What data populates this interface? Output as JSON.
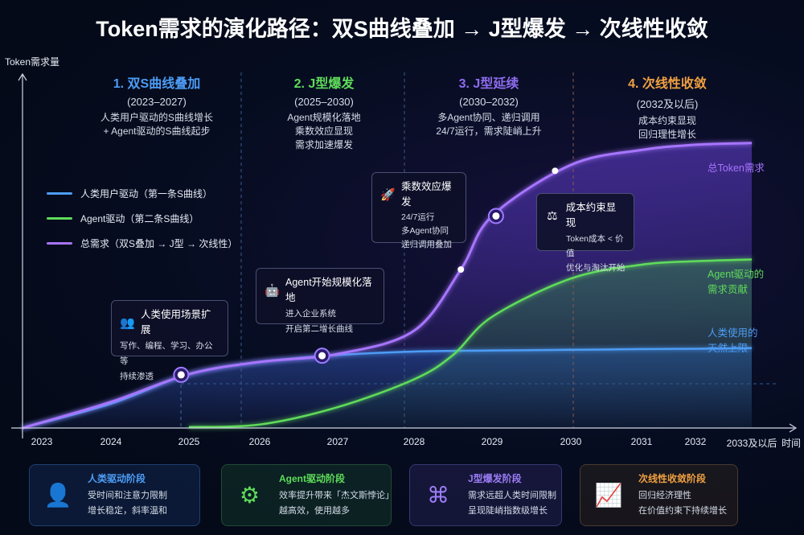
{
  "title": "Token需求的演化路径：双S曲线叠加 → J型爆发 → 次线性收敛",
  "colors": {
    "human": "#4d9cf5",
    "agent": "#5fdc5a",
    "total": "#a774ff",
    "phase4": "#f0a040",
    "background": "#040a18"
  },
  "phases": [
    {
      "title": "1. 双S曲线叠加",
      "years": "(2023–2027)",
      "lines": [
        "人类用户驱动的S曲线增长",
        "+ Agent驱动的S曲线起步"
      ],
      "color": "#4d9cf5"
    },
    {
      "title": "2. J型爆发",
      "years": "(2025–2030)",
      "lines": [
        "Agent规模化落地",
        "乘数效应显现",
        "需求加速爆发"
      ],
      "color": "#5fdc5a"
    },
    {
      "title": "3. J型延续",
      "years": "(2030–2032)",
      "lines": [
        "多Agent协同、递归调用",
        "24/7运行，需求陡峭上升"
      ],
      "color": "#8f6cf0"
    },
    {
      "title": "4. 次线性收敛",
      "years": "(2032及以后)",
      "lines": [
        "成本约束显现",
        "回归理性增长"
      ],
      "color": "#f0a040"
    }
  ],
  "callouts": [
    {
      "icon": "users-icon",
      "title": "人类使用场景扩展",
      "lines": [
        "写作、编程、学习、办公等",
        "持续渗透"
      ]
    },
    {
      "icon": "robot-icon",
      "title": "Agent开始规模化落地",
      "lines": [
        "进入企业系统",
        "开启第二增长曲线"
      ]
    },
    {
      "icon": "rocket-icon",
      "title": "乘数效应爆发",
      "lines": [
        "24/7运行",
        "多Agent协同",
        "递归调用叠加"
      ]
    },
    {
      "icon": "scale-icon",
      "title": "成本约束显现",
      "lines": [
        "Token成本 < 价值",
        "优化与淘汰开始"
      ]
    }
  ],
  "right_labels": {
    "total": "总Token需求",
    "agent": [
      "Agent驱动的",
      "需求贡献"
    ],
    "human": [
      "人类使用的",
      "天然上限"
    ]
  },
  "cards": [
    {
      "icon": "person-icon",
      "title": "人类驱动阶段",
      "lines": [
        "受时间和注意力限制",
        "增长稳定，斜率温和"
      ],
      "color": "#4d9cf5"
    },
    {
      "icon": "gears-icon",
      "title": "Agent驱动阶段",
      "lines": [
        "效率提升带来「杰文斯悖论」",
        "越高效，使用越多"
      ],
      "color": "#5fdc5a"
    },
    {
      "icon": "network-icon",
      "title": "J型爆发阶段",
      "lines": [
        "需求远超人类时间限制",
        "呈现陡峭指数级增长"
      ],
      "color": "#9b7cf5"
    },
    {
      "icon": "growth-chart-icon",
      "title": "次线性收敛阶段",
      "lines": [
        "回归经济理性",
        "在价值约束下持续增长"
      ],
      "color": "#f0a040"
    }
  ],
  "chart_data": {
    "type": "line",
    "title": "Token需求的演化路径：双S曲线叠加 → J型爆发 → 次线性收敛",
    "xlabel": "时间",
    "ylabel": "Token需求量",
    "x_tick_labels": [
      "2023",
      "2024",
      "2025",
      "2026",
      "2027",
      "2028",
      "2029",
      "2030",
      "2031",
      "2032",
      "2033及以后"
    ],
    "ylim": [
      0,
      100
    ],
    "grid": false,
    "legend": "left",
    "legend_entries": [
      "人类用户驱动（第一条S曲线）",
      "Agent驱动（第二条S曲线）",
      "总需求（双S叠加 → J型 → 次线性）"
    ],
    "series": [
      {
        "name": "人类用户驱动（第一条S曲线）",
        "key": "human",
        "x": [
          2023,
          2024,
          2025,
          2026,
          2027,
          2028,
          2029,
          2030,
          2031,
          2032,
          2033
        ],
        "y": [
          0,
          7,
          15.5,
          19,
          21,
          22,
          22.3,
          22.5,
          22.7,
          22.8,
          23
        ]
      },
      {
        "name": "Agent驱动（第二条S曲线）",
        "key": "agent",
        "x": [
          2025,
          2026,
          2027,
          2028,
          2028.5,
          2029,
          2030,
          2031,
          2032,
          2033
        ],
        "y": [
          0.3,
          1,
          6,
          14,
          21,
          32,
          43,
          47,
          48,
          48.5
        ]
      },
      {
        "name": "总需求（双S叠加 → J型 → 次线性）",
        "key": "total",
        "x": [
          2023,
          2024,
          2025,
          2026,
          2027,
          2028,
          2028.6,
          2029,
          2030,
          2031,
          2032,
          2033
        ],
        "y": [
          0,
          7.5,
          15.5,
          19,
          21.3,
          28,
          45.6,
          61,
          75.7,
          80,
          81.5,
          82
        ]
      }
    ],
    "markers": [
      {
        "x": 2024.9,
        "y": 15.3
      },
      {
        "x": 2026.8,
        "y": 20.8
      },
      {
        "x": 2028.6,
        "y": 45.6
      },
      {
        "x": 2029.05,
        "y": 61
      },
      {
        "x": 2029.8,
        "y": 74
      }
    ]
  }
}
